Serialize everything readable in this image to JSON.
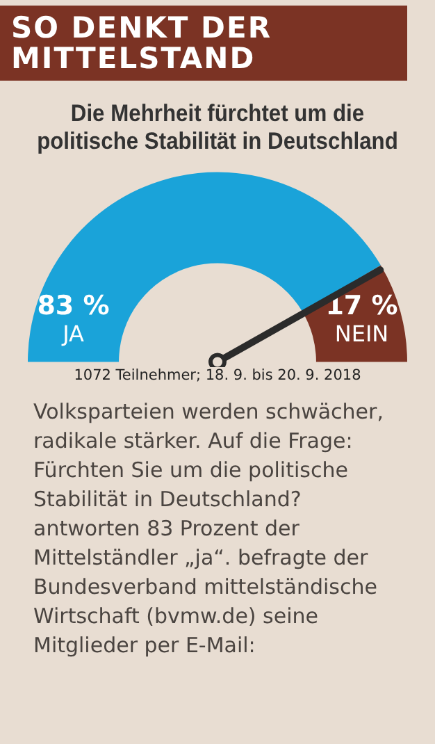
{
  "chart_data": {
    "type": "donut",
    "title": "SO DENKT DER MITTELSTAND",
    "subtitle": "Die Mehrheit fürchtet um die politische Stabilität in Deutschland",
    "categories": [
      "JA",
      "NEIN"
    ],
    "values": [
      83,
      17
    ],
    "colors": [
      "#1aa3d9",
      "#7b3324"
    ],
    "value_labels": [
      "83 %",
      "17 %"
    ],
    "needle": "NEIN",
    "legend": false,
    "annotations": [
      "1072 Teilnehmer; 18. 9. bis 20. 9. 2018",
      "Volksparteien werden schwächer, radikale stärker. Auf die Frage: Fürchten Sie um die politische Stabilität in Deutschland? antworten 83 Prozent der Mittelständler „ja“. befragte der Bundesverband mittelständische Wirtschaft (bvmw.de) seine Mitglieder per E-Mail:"
    ]
  }
}
